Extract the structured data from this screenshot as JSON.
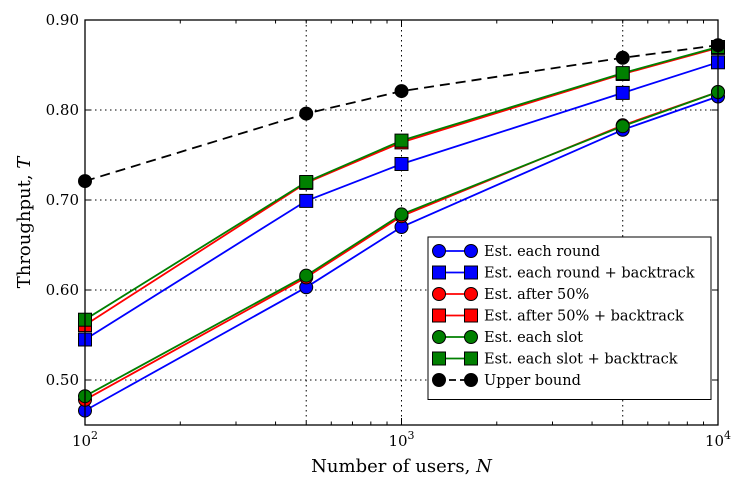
{
  "chart_data": {
    "type": "line",
    "title": "",
    "xlabel_text": "Number of users,",
    "xlabel_symbol": "N",
    "ylabel_text": "Throughput,",
    "ylabel_symbol": "T",
    "xscale": "log",
    "xlim": [
      100,
      10000
    ],
    "ylim": [
      0.45,
      0.9
    ],
    "grid": true,
    "legend_position": "lower-right",
    "x_ticks": [
      {
        "value": 100,
        "base": "10",
        "exp": "2"
      },
      {
        "value": 1000,
        "base": "10",
        "exp": "3"
      },
      {
        "value": 10000,
        "base": "10",
        "exp": "4"
      }
    ],
    "y_ticks": [
      {
        "value": 0.5,
        "label": "0.50"
      },
      {
        "value": 0.6,
        "label": "0.60"
      },
      {
        "value": 0.7,
        "label": "0.70"
      },
      {
        "value": 0.8,
        "label": "0.80"
      },
      {
        "value": 0.9,
        "label": "0.90"
      }
    ],
    "x_minor_grid": [
      500,
      5000
    ],
    "x": [
      100,
      500,
      1000,
      5000,
      10000
    ],
    "series": [
      {
        "name": "Est. each round",
        "color": "#0000ff",
        "marker": "circle",
        "dash": false,
        "values": [
          0.466,
          0.603,
          0.67,
          0.778,
          0.815
        ]
      },
      {
        "name": "Est. each round + backtrack",
        "color": "#0000ff",
        "marker": "square",
        "dash": false,
        "values": [
          0.545,
          0.699,
          0.74,
          0.819,
          0.853
        ]
      },
      {
        "name": "Est. after 50%",
        "color": "#ff0000",
        "marker": "circle",
        "dash": false,
        "values": [
          0.478,
          0.614,
          0.682,
          0.783,
          0.82
        ]
      },
      {
        "name": "Est. after 50% + backtrack",
        "color": "#ff0000",
        "marker": "square",
        "dash": false,
        "values": [
          0.561,
          0.719,
          0.764,
          0.84,
          0.869
        ]
      },
      {
        "name": "Est. each slot",
        "color": "#008000",
        "marker": "circle",
        "dash": false,
        "values": [
          0.482,
          0.616,
          0.684,
          0.782,
          0.82
        ]
      },
      {
        "name": "Est. each slot + backtrack",
        "color": "#008000",
        "marker": "square",
        "dash": false,
        "values": [
          0.567,
          0.72,
          0.766,
          0.841,
          0.87
        ]
      },
      {
        "name": "Upper bound",
        "color": "#000000",
        "marker": "circle",
        "dash": true,
        "values": [
          0.721,
          0.796,
          0.821,
          0.858,
          0.872
        ]
      }
    ]
  }
}
